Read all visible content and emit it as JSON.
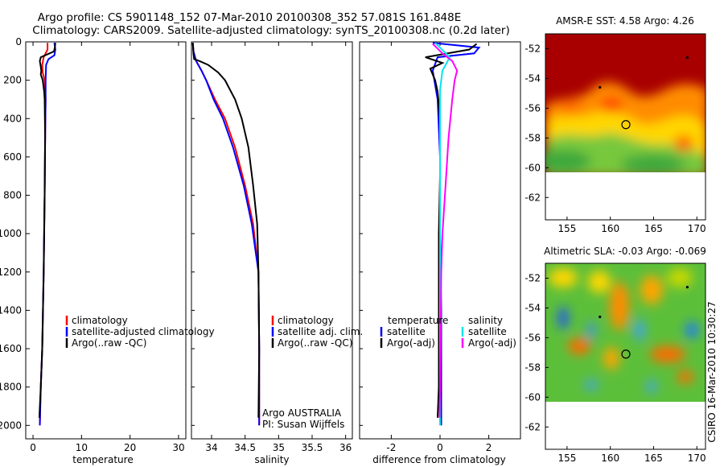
{
  "title": {
    "line1": "Argo profile: CS 5901148_152 07-Mar-2010 20100308_352 57.081S 161.848E",
    "line2": "Climatology: CARS2009. Satellite-adjusted climatology: synTS_20100308.nc (0.2d later)"
  },
  "credit": "CSIRO 16-Mar-2010 10:30:27",
  "colors": {
    "red": "#ff0000",
    "blue": "#0000ff",
    "black": "#000000",
    "cyan": "#00e5ee",
    "magenta": "#ff00ff"
  },
  "chart_data": [
    {
      "id": "temperature",
      "type": "line",
      "xlabel": "temperature",
      "xlim": [
        -1.5,
        31.5
      ],
      "ylim": [
        2070,
        0
      ],
      "y_reversed": true,
      "xticks": [
        0,
        10,
        20,
        30
      ],
      "yticks": [
        0,
        200,
        400,
        600,
        800,
        1000,
        1200,
        1400,
        1600,
        1800,
        2000
      ],
      "legend": {
        "placement": "lower-left",
        "entries": [
          "climatology",
          "satellite-adjusted climatology",
          "Argo(..raw -QC)"
        ]
      },
      "series": [
        {
          "name": "climatology",
          "color": "red",
          "points": [
            [
              3.0,
              5
            ],
            [
              3.0,
              40
            ],
            [
              2.2,
              80
            ],
            [
              1.9,
              120
            ],
            [
              2.0,
              160
            ],
            [
              2.4,
              200
            ],
            [
              2.6,
              300
            ],
            [
              2.5,
              500
            ],
            [
              2.4,
              800
            ],
            [
              2.2,
              1200
            ],
            [
              1.9,
              1600
            ],
            [
              1.6,
              1800
            ],
            [
              1.4,
              2000
            ]
          ]
        },
        {
          "name": "satellite-adjusted climatology",
          "color": "blue",
          "points": [
            [
              4.4,
              5
            ],
            [
              4.6,
              40
            ],
            [
              4.4,
              70
            ],
            [
              3.2,
              90
            ],
            [
              2.7,
              120
            ],
            [
              2.6,
              200
            ],
            [
              2.6,
              300
            ],
            [
              2.5,
              500
            ],
            [
              2.4,
              800
            ],
            [
              2.2,
              1200
            ],
            [
              1.9,
              1600
            ],
            [
              1.6,
              1800
            ],
            [
              1.4,
              2000
            ]
          ]
        },
        {
          "name": "Argo(..raw -QC)",
          "color": "black",
          "points": [
            [
              4.6,
              5
            ],
            [
              4.5,
              30
            ],
            [
              4.3,
              50
            ],
            [
              1.6,
              80
            ],
            [
              1.4,
              100
            ],
            [
              1.6,
              130
            ],
            [
              1.7,
              150
            ],
            [
              1.6,
              170
            ],
            [
              2.0,
              200
            ],
            [
              2.3,
              260
            ],
            [
              2.4,
              300
            ],
            [
              2.5,
              500
            ],
            [
              2.4,
              800
            ],
            [
              2.2,
              1200
            ],
            [
              1.9,
              1600
            ],
            [
              1.6,
              1800
            ],
            [
              1.3,
              1960
            ]
          ]
        }
      ]
    },
    {
      "id": "salinity",
      "type": "line",
      "xlabel": "salinity",
      "xlim": [
        33.7,
        36.1
      ],
      "ylim": [
        2070,
        0
      ],
      "y_reversed": true,
      "xticks": [
        34,
        34.5,
        35,
        35.5,
        36
      ],
      "xtick_labels": [
        "34",
        "34.5",
        "35",
        "35.5",
        "36"
      ],
      "legend": {
        "placement": "lower-right",
        "entries": [
          "climatology",
          "satellite adj. clim.",
          "Argo(..raw -QC)"
        ]
      },
      "annotation": [
        "Argo AUSTRALIA",
        "PI: Susan Wijffels"
      ],
      "series": [
        {
          "name": "climatology",
          "color": "red",
          "points": [
            [
              33.72,
              5
            ],
            [
              33.73,
              50
            ],
            [
              33.77,
              100
            ],
            [
              33.85,
              150
            ],
            [
              33.92,
              200
            ],
            [
              34.05,
              300
            ],
            [
              34.2,
              400
            ],
            [
              34.35,
              550
            ],
            [
              34.5,
              750
            ],
            [
              34.62,
              950
            ],
            [
              34.7,
              1200
            ],
            [
              34.71,
              1600
            ],
            [
              34.71,
              2000
            ]
          ]
        },
        {
          "name": "satellite adj. clim.",
          "color": "blue",
          "points": [
            [
              33.72,
              5
            ],
            [
              33.73,
              50
            ],
            [
              33.77,
              100
            ],
            [
              33.85,
              150
            ],
            [
              33.92,
              200
            ],
            [
              34.03,
              300
            ],
            [
              34.17,
              400
            ],
            [
              34.32,
              550
            ],
            [
              34.48,
              750
            ],
            [
              34.6,
              950
            ],
            [
              34.7,
              1200
            ],
            [
              34.71,
              1600
            ],
            [
              34.71,
              2000
            ]
          ]
        },
        {
          "name": "Argo(..raw -QC)",
          "color": "black",
          "points": [
            [
              33.72,
              5
            ],
            [
              33.73,
              60
            ],
            [
              33.74,
              90
            ],
            [
              33.82,
              100
            ],
            [
              33.95,
              120
            ],
            [
              34.1,
              160
            ],
            [
              34.2,
              200
            ],
            [
              34.35,
              300
            ],
            [
              34.45,
              400
            ],
            [
              34.55,
              550
            ],
            [
              34.62,
              750
            ],
            [
              34.68,
              950
            ],
            [
              34.7,
              1200
            ],
            [
              34.71,
              1600
            ],
            [
              34.7,
              1960
            ]
          ]
        }
      ]
    },
    {
      "id": "difference",
      "type": "line",
      "xlabel": "difference from climatology",
      "xlim": [
        -3.3,
        3.3
      ],
      "ylim": [
        2070,
        0
      ],
      "y_reversed": true,
      "xticks": [
        -2,
        0,
        2
      ],
      "legend": {
        "placement": "lower-center",
        "columns": [
          {
            "heading": "temperature",
            "entries": [
              {
                "label": "satellite",
                "color": "blue"
              },
              {
                "label": "Argo(-adj)",
                "color": "black"
              }
            ]
          },
          {
            "heading": "salinity",
            "entries": [
              {
                "label": "satellite",
                "color": "cyan"
              },
              {
                "label": "Argo(-adj)",
                "color": "magenta"
              }
            ]
          }
        ]
      },
      "series": [
        {
          "name": "temperature satellite",
          "color": "blue",
          "points": [
            [
              -0.3,
              5
            ],
            [
              1.6,
              30
            ],
            [
              1.4,
              60
            ],
            [
              -0.1,
              80
            ],
            [
              -0.3,
              150
            ],
            [
              -0.1,
              300
            ],
            [
              0,
              600
            ],
            [
              0,
              1000
            ],
            [
              0.05,
              1400
            ],
            [
              0.05,
              1800
            ],
            [
              0.05,
              2000
            ]
          ]
        },
        {
          "name": "temperature Argo(-adj)",
          "color": "black",
          "points": [
            [
              1.5,
              10
            ],
            [
              1.2,
              40
            ],
            [
              -0.6,
              80
            ],
            [
              0.1,
              110
            ],
            [
              -0.4,
              140
            ],
            [
              -0.2,
              200
            ],
            [
              -0.1,
              260
            ],
            [
              0,
              400
            ],
            [
              0,
              700
            ],
            [
              -0.05,
              1000
            ],
            [
              -0.05,
              1400
            ],
            [
              -0.05,
              1800
            ],
            [
              -0.1,
              1960
            ]
          ]
        },
        {
          "name": "salinity satellite",
          "color": "cyan",
          "points": [
            [
              -0.2,
              5
            ],
            [
              0.4,
              80
            ],
            [
              0.1,
              150
            ],
            [
              0,
              250
            ],
            [
              0,
              400
            ],
            [
              0,
              700
            ],
            [
              0,
              1000
            ],
            [
              0,
              1400
            ],
            [
              0,
              1800
            ],
            [
              0,
              2000
            ]
          ]
        },
        {
          "name": "salinity Argo(-adj)",
          "color": "magenta",
          "points": [
            [
              -0.3,
              10
            ],
            [
              0.1,
              60
            ],
            [
              0.5,
              100
            ],
            [
              0.7,
              150
            ],
            [
              0.6,
              200
            ],
            [
              0.5,
              300
            ],
            [
              0.35,
              500
            ],
            [
              0.2,
              800
            ],
            [
              0.1,
              1000
            ],
            [
              0.05,
              1200
            ],
            [
              0.02,
              1600
            ],
            [
              0,
              1800
            ],
            [
              -0.02,
              1960
            ]
          ]
        }
      ]
    },
    {
      "id": "sst_map",
      "type": "heatmap",
      "title": "AMSR-E SST: 4.58 Argo: 4.26",
      "xlim": [
        152.5,
        171
      ],
      "ylim": [
        -63.5,
        -51
      ],
      "xticks": [
        155,
        160,
        165,
        170
      ],
      "yticks": [
        -52,
        -54,
        -56,
        -58,
        -60,
        -62
      ],
      "palette": "jet",
      "data_extent_lat": -60,
      "profile_position": [
        161.8,
        -57.1
      ],
      "float_marks": [
        [
          168.9,
          -52.6
        ],
        [
          158.8,
          -54.6
        ]
      ]
    },
    {
      "id": "sla_map",
      "type": "heatmap",
      "title": "Altimetric SLA: -0.03 Argo: -0.069",
      "xlim": [
        152.5,
        171
      ],
      "ylim": [
        -63.5,
        -51
      ],
      "xticks": [
        155,
        160,
        165,
        170
      ],
      "yticks": [
        -52,
        -54,
        -56,
        -58,
        -60,
        -62
      ],
      "palette": "jet",
      "data_extent_lat": -60,
      "profile_position": [
        161.8,
        -57.1
      ],
      "float_marks": [
        [
          168.9,
          -52.6
        ],
        [
          158.8,
          -54.6
        ]
      ]
    }
  ]
}
